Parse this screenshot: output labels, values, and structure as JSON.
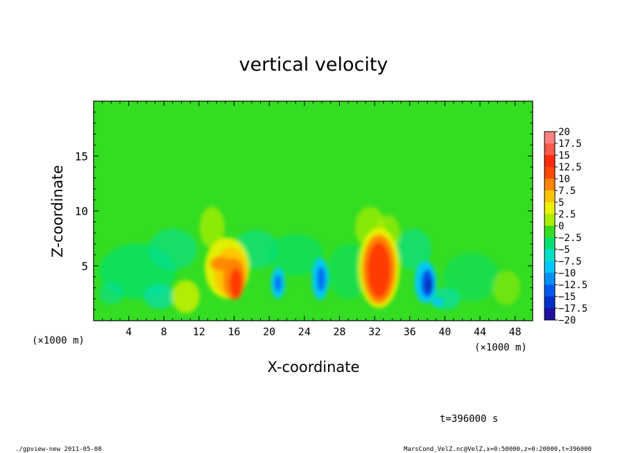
{
  "chart_data": {
    "type": "heatmap",
    "title": "vertical velocity",
    "xlabel": "X-coordinate",
    "ylabel": "Z-coordinate",
    "x_units": "(×1000 m)",
    "y_units": "(×1000 m)",
    "xlim": [
      0,
      50
    ],
    "ylim": [
      0,
      20
    ],
    "x_ticks": [
      4,
      8,
      12,
      16,
      20,
      24,
      28,
      32,
      36,
      40,
      44,
      48
    ],
    "y_ticks": [
      5,
      10,
      15
    ],
    "colorbar": {
      "levels": [
        20,
        17.5,
        15,
        12.5,
        10,
        7.5,
        5,
        2.5,
        0,
        -2.5,
        -5,
        -7.5,
        -10,
        -12.5,
        -15,
        -17.5,
        -20
      ],
      "labels": [
        "20",
        "17.5",
        "15",
        "12.5",
        "10",
        "7.5",
        "5",
        "2.5",
        "0",
        "−2.5",
        "−5",
        "−7.5",
        "−10",
        "−12.5",
        "−15",
        "−17.5",
        "−20"
      ]
    },
    "features": [
      {
        "x": 15.8,
        "z": 3.8,
        "value": 15
      },
      {
        "x": 32.5,
        "z": 4.8,
        "value": 15
      },
      {
        "x": 21.0,
        "z": 3.5,
        "value": -10
      },
      {
        "x": 25.8,
        "z": 3.8,
        "value": -10
      },
      {
        "x": 38.0,
        "z": 3.5,
        "value": -15
      }
    ]
  },
  "annotations": {
    "time": "t=396000 s",
    "footer_left": "./gpview-new   2011-05-08",
    "footer_right": "MarsCond_VelZ.nc@VelZ,x=0:50000,z=0:20000,t=396000"
  },
  "colors": {
    "background_field": "#33dd22",
    "bar_ramp": [
      "#ff8080",
      "#ff5a4a",
      "#ff2a10",
      "#ff4800",
      "#ff8400",
      "#ffc400",
      "#eaf200",
      "#aaee00",
      "#33dd22",
      "#00e070",
      "#00e0c8",
      "#00c8ff",
      "#0090ff",
      "#0058f0",
      "#0030c8",
      "#2010a0",
      "#6010a8"
    ]
  }
}
